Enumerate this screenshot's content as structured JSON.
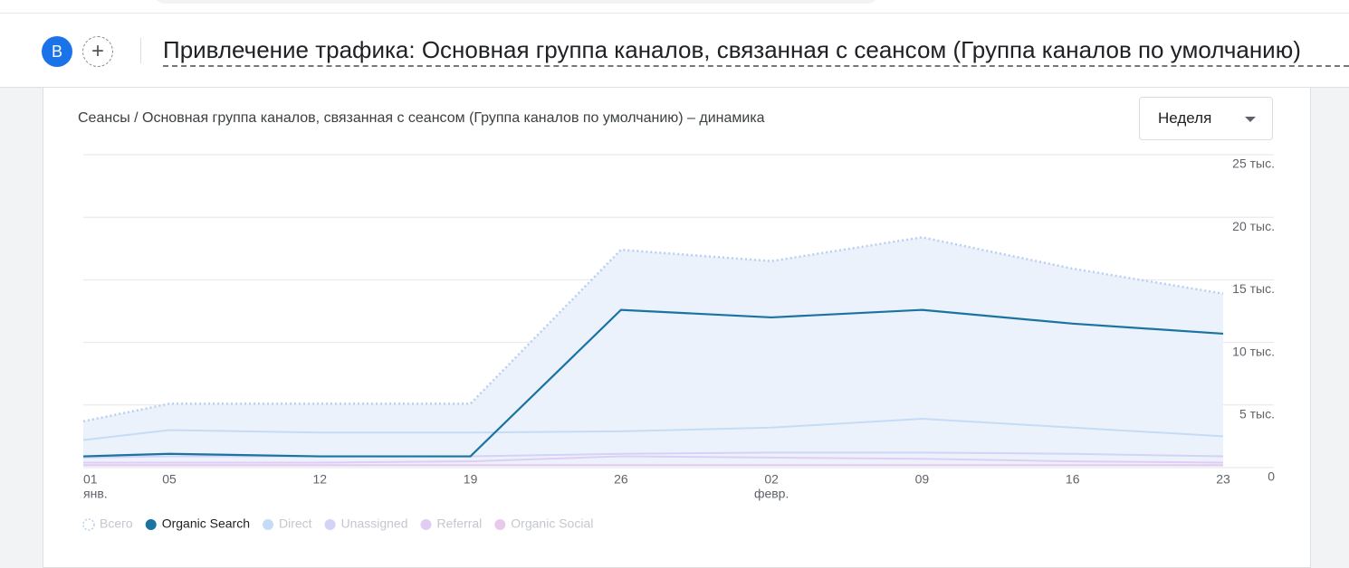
{
  "header": {
    "avatar": "B",
    "title": "Привлечение трафика: Основная группа каналов, связанная с сеансом (Группа каналов по умолчанию)"
  },
  "chart_data": {
    "type": "line",
    "title": "Сеансы / Основная группа каналов, связанная с сеансом (Группа каналов по умолчанию) – динамика",
    "period": "Неделя",
    "categories": [
      "01",
      "05",
      "12",
      "19",
      "26",
      "02",
      "09",
      "16",
      "23"
    ],
    "x_sublabels": [
      "янв.",
      null,
      null,
      null,
      null,
      "февр.",
      null,
      null,
      null
    ],
    "ylim": [
      0,
      25
    ],
    "yticks": [
      0,
      {
        "value": 5,
        "label": "5 тыс."
      },
      {
        "value": 10,
        "label": "10 тыс."
      },
      {
        "value": 15,
        "label": "15 тыс."
      },
      {
        "value": 20,
        "label": "20 тыс."
      },
      {
        "value": 25,
        "label": "25 тыс."
      }
    ],
    "grid": true,
    "series": [
      {
        "name": "Всего",
        "color": "#b7cff2",
        "dash": "dotted",
        "area_fill": "#ebf2fc",
        "active": false,
        "values": [
          3.7,
          5.1,
          5.1,
          5.1,
          17.4,
          16.5,
          18.4,
          15.9,
          13.9
        ]
      },
      {
        "name": "Organic Search",
        "color": "#1a73a0",
        "active": true,
        "values": [
          0.9,
          1.1,
          0.9,
          0.9,
          12.6,
          12.0,
          12.6,
          11.5,
          10.7
        ]
      },
      {
        "name": "Direct",
        "color": "#c5dcf6",
        "active": false,
        "values": [
          2.2,
          3.0,
          2.8,
          2.8,
          2.9,
          3.2,
          3.9,
          3.2,
          2.5
        ]
      },
      {
        "name": "Unassigned",
        "color": "#d3d2f7",
        "active": false,
        "values": [
          0.8,
          0.9,
          0.9,
          0.9,
          1.1,
          1.2,
          1.2,
          1.1,
          0.9
        ]
      },
      {
        "name": "Referral",
        "color": "#e0cdf4",
        "active": false,
        "values": [
          0.4,
          0.4,
          0.4,
          0.5,
          0.9,
          0.8,
          0.7,
          0.5,
          0.4
        ]
      },
      {
        "name": "Organic Social",
        "color": "#e8c9ec",
        "active": false,
        "values": [
          0.2,
          0.2,
          0.2,
          0.2,
          0.2,
          0.2,
          0.2,
          0.2,
          0.2
        ]
      }
    ]
  }
}
